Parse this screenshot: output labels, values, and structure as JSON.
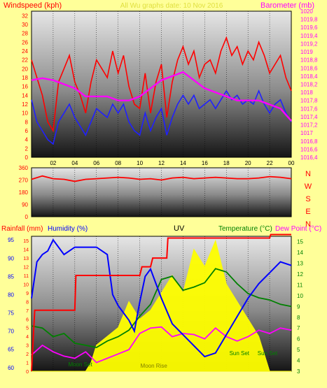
{
  "title_overlay": "All Wu graphs date: 10 Nov 2016",
  "colors": {
    "background": "#ffff99",
    "wind": "#ff0000",
    "wind_avg": "#2020ff",
    "barometer": "#ff00ff",
    "wind_dir": "#ff0000",
    "rainfall": "#ff0000",
    "humidity": "#0000ff",
    "uv": "#ffff00",
    "temperature": "#008000",
    "dew_point": "#ff00ff",
    "axis_left": "#ff0000",
    "axis_right": "#ff00ff",
    "axis_temp": "#008000"
  },
  "x_ticks": [
    "02",
    "04",
    "06",
    "08",
    "10",
    "12",
    "14",
    "16",
    "18",
    "20",
    "22",
    "00"
  ],
  "chart_data": [
    {
      "type": "line",
      "name": "wind-barometer",
      "left_label": "Windspeed (kph)",
      "right_label": "Barometer (mb)",
      "left_ticks": [
        "0",
        "2",
        "4",
        "6",
        "8",
        "10",
        "12",
        "14",
        "16",
        "18",
        "20",
        "22",
        "24",
        "26",
        "28",
        "30",
        "32"
      ],
      "right_ticks": [
        "1016,4",
        "1016,6",
        "1016,8",
        "1017",
        "1017,2",
        "1017,4",
        "1017,6",
        "1017,8",
        "1018",
        "1018,2",
        "1018,4",
        "1018,6",
        "1018,8",
        "1019",
        "1019,2",
        "1019,4",
        "1019,6",
        "1019,8",
        "1020"
      ],
      "ylim_left": [
        0,
        33
      ],
      "ylim_right": [
        1016.4,
        1020
      ],
      "x_range_hours": [
        0,
        24
      ],
      "series": [
        {
          "key": "gust",
          "axis": "left",
          "x": [
            0,
            0.5,
            1,
            1.5,
            2,
            2.5,
            3,
            3.5,
            4,
            4.5,
            5,
            5.5,
            6,
            6.5,
            7,
            7.5,
            8,
            8.5,
            9,
            9.5,
            10,
            10.5,
            11,
            11.5,
            12,
            12.5,
            13,
            13.5,
            14,
            14.5,
            15,
            15.5,
            16,
            16.5,
            17,
            17.5,
            18,
            18.5,
            19,
            19.5,
            20,
            20.5,
            21,
            21.5,
            22,
            22.5,
            23,
            23.5,
            24
          ],
          "values": [
            22,
            18,
            14,
            8,
            6,
            17,
            20,
            23,
            17,
            14,
            10,
            17,
            22,
            20,
            18,
            24,
            19,
            23,
            16,
            12,
            11,
            19,
            10,
            17,
            21,
            9,
            17,
            22,
            25,
            21,
            24,
            18,
            21,
            22,
            19,
            24,
            27,
            23,
            25,
            21,
            24,
            22,
            26,
            23,
            19,
            21,
            23,
            18,
            15
          ]
        },
        {
          "key": "avg",
          "axis": "left",
          "x": [
            0,
            0.5,
            1,
            1.5,
            2,
            2.5,
            3,
            3.5,
            4,
            4.5,
            5,
            5.5,
            6,
            6.5,
            7,
            7.5,
            8,
            8.5,
            9,
            9.5,
            10,
            10.5,
            11,
            11.5,
            12,
            12.5,
            13,
            13.5,
            14,
            14.5,
            15,
            15.5,
            16,
            16.5,
            17,
            17.5,
            18,
            18.5,
            19,
            19.5,
            20,
            20.5,
            21,
            21.5,
            22,
            22.5,
            23,
            23.5,
            24
          ],
          "values": [
            13,
            8,
            6,
            4,
            3,
            8,
            10,
            12,
            9,
            7,
            5,
            8,
            11,
            10,
            9,
            12,
            10,
            12,
            8,
            6,
            5,
            10,
            6,
            9,
            11,
            5,
            9,
            12,
            14,
            12,
            14,
            11,
            12,
            13,
            11,
            13,
            15,
            13,
            14,
            12,
            13,
            12,
            15,
            12,
            10,
            12,
            13,
            10,
            8
          ]
        },
        {
          "key": "barometer",
          "axis": "right",
          "x": [
            0,
            1,
            2,
            3,
            4,
            5,
            6,
            7,
            8,
            9,
            10,
            11,
            12,
            13,
            14,
            15,
            16,
            17,
            18,
            19,
            20,
            21,
            22,
            23,
            24
          ],
          "values": [
            1018.3,
            1018.35,
            1018.3,
            1018.2,
            1018.1,
            1017.9,
            1017.9,
            1017.9,
            1017.8,
            1017.8,
            1017.9,
            1018.1,
            1018.3,
            1018.4,
            1018.5,
            1018.3,
            1018.1,
            1018.0,
            1017.9,
            1017.8,
            1017.8,
            1017.8,
            1017.7,
            1017.6,
            1017.3
          ]
        }
      ]
    },
    {
      "type": "line",
      "name": "wind-direction",
      "left_ticks": [
        "0",
        "90",
        "180",
        "270",
        "360"
      ],
      "right_labels": [
        "N",
        "W",
        "S",
        "E",
        "N"
      ],
      "ylim": [
        0,
        360
      ],
      "series": [
        {
          "key": "direction",
          "x": [
            0,
            1,
            2,
            3,
            4,
            5,
            6,
            7,
            8,
            9,
            10,
            11,
            12,
            13,
            14,
            15,
            16,
            17,
            18,
            19,
            20,
            21,
            22,
            23,
            24
          ],
          "values": [
            275,
            300,
            280,
            275,
            260,
            275,
            280,
            285,
            290,
            285,
            275,
            280,
            270,
            285,
            290,
            280,
            285,
            290,
            285,
            280,
            280,
            285,
            295,
            290,
            280
          ]
        }
      ]
    },
    {
      "type": "line",
      "name": "rain-humidity-uv-temperature",
      "labels": [
        "Rainfall (mm)",
        "Humidity (%)",
        "UV",
        "Temperature (°C)",
        "Dew Point (°C)"
      ],
      "left_ticks": [
        "60",
        "65",
        "70",
        "75",
        "80",
        "85",
        "90",
        "95"
      ],
      "ylim_left": [
        59,
        96
      ],
      "right_ticks": [
        "3",
        "4",
        "5",
        "6",
        "7",
        "8",
        "9",
        "10",
        "11",
        "12",
        "13",
        "14",
        "15"
      ],
      "ylim_right": [
        3,
        15.5
      ],
      "inner_ticks": [
        "0",
        "1",
        "2",
        "3",
        "4",
        "5",
        "6",
        "7",
        "8",
        "9",
        "10",
        "11",
        "12",
        "13",
        "14",
        "15"
      ],
      "ylim_inner": [
        0,
        15.5
      ],
      "annotations": [
        "Moon Set",
        "Sun Set",
        "Moon Rise",
        "Sun Set"
      ],
      "series": [
        {
          "key": "rainfall",
          "axis": "inner",
          "x": [
            0,
            0.3,
            1.2,
            4,
            4.1,
            10,
            10.2,
            11,
            11.2,
            12.5,
            12.6,
            22,
            22.1,
            24
          ],
          "values": [
            0,
            7,
            7,
            7,
            11,
            11,
            12,
            12,
            13,
            13,
            15.3,
            15.3,
            15.7,
            15.7
          ]
        },
        {
          "key": "humidity",
          "axis": "left",
          "x": [
            0,
            0.5,
            1,
            1.5,
            2,
            3,
            4,
            5,
            6,
            7,
            7.5,
            8,
            9,
            9.5,
            10,
            10.5,
            11,
            12,
            13,
            14,
            15,
            16,
            17,
            18,
            19,
            20,
            21,
            22,
            23,
            24
          ],
          "values": [
            79,
            89,
            91,
            92,
            95,
            91,
            93,
            93,
            93,
            91,
            80,
            77,
            73,
            70,
            78,
            85,
            87,
            79,
            72,
            69,
            66,
            63,
            64,
            69,
            74,
            79,
            83,
            86,
            89,
            88
          ]
        },
        {
          "key": "temperature",
          "axis": "right",
          "x": [
            0,
            1,
            2,
            3,
            4,
            5,
            6,
            7,
            8,
            9,
            10,
            11,
            12,
            13,
            14,
            15,
            16,
            17,
            18,
            19,
            20,
            21,
            22,
            23,
            24
          ],
          "values": [
            7.2,
            7,
            6.2,
            6.5,
            5.6,
            5.4,
            5.2,
            5.8,
            6.2,
            6.8,
            8.1,
            9.2,
            11.5,
            11.8,
            10.5,
            10.8,
            11.2,
            12.5,
            12.2,
            11.1,
            10.2,
            9.8,
            9.6,
            9.2,
            9.0
          ]
        },
        {
          "key": "dew_point",
          "axis": "right",
          "x": [
            0,
            1,
            2,
            3,
            4,
            5,
            6,
            7,
            8,
            9,
            10,
            11,
            12,
            13,
            14,
            15,
            16,
            17,
            18,
            19,
            20,
            21,
            22,
            23,
            24
          ],
          "values": [
            4.5,
            5.4,
            4.8,
            4.4,
            4.2,
            4.8,
            3.8,
            4.2,
            4.6,
            5.0,
            6.5,
            7.0,
            7.1,
            6.2,
            6.5,
            6.4,
            6.0,
            7.0,
            6.2,
            5.8,
            6.2,
            6.8,
            6.5,
            7.0,
            6.8
          ]
        },
        {
          "key": "uv",
          "axis": "inner",
          "x": [
            0,
            5,
            5.5,
            6,
            7,
            8,
            9,
            10,
            11,
            12,
            13,
            14,
            15,
            16,
            17,
            18,
            19,
            20,
            21,
            22,
            23,
            24
          ],
          "values": [
            0,
            0,
            1,
            3,
            4,
            5,
            8,
            6,
            7,
            9,
            11,
            9,
            14,
            12,
            15,
            10,
            8,
            6,
            4,
            0,
            0,
            0
          ]
        }
      ]
    }
  ]
}
